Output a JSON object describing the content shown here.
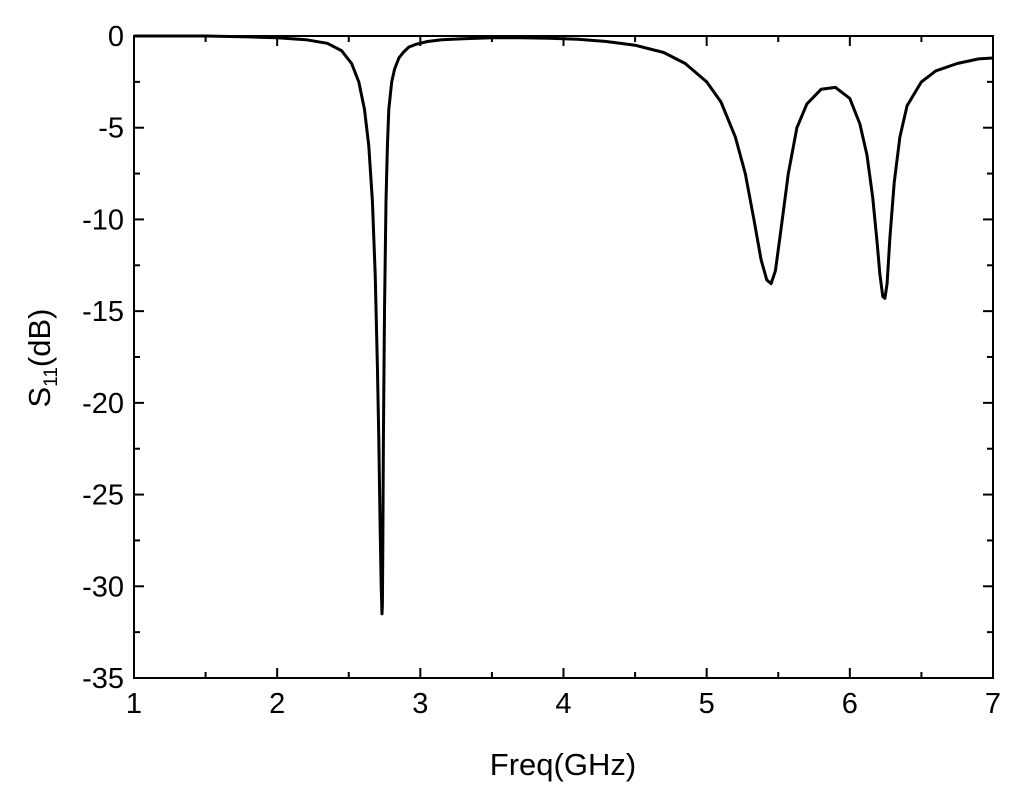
{
  "chart_data": {
    "type": "line",
    "xlabel": "Freq(GHz)",
    "ylabel": {
      "main": "S",
      "sub": "11",
      "unit": "(dB)"
    },
    "xlim": [
      1,
      7
    ],
    "ylim": [
      -35,
      0
    ],
    "xticks": [
      1,
      2,
      3,
      4,
      5,
      6,
      7
    ],
    "yticks": [
      0,
      -5,
      -10,
      -15,
      -20,
      -25,
      -30,
      -35
    ],
    "xtick_labels": [
      "1",
      "2",
      "3",
      "4",
      "5",
      "6",
      "7"
    ],
    "ytick_labels": [
      "0",
      "-5",
      "-10",
      "-15",
      "-20",
      "-25",
      "-30",
      "-35"
    ],
    "grid": false,
    "line_color": "#000000",
    "series": [
      {
        "x": [
          1.0,
          1.5,
          1.8,
          2.0,
          2.2,
          2.35,
          2.45,
          2.52,
          2.57,
          2.61,
          2.64,
          2.665,
          2.685,
          2.7,
          2.71,
          2.72,
          2.727,
          2.732,
          2.735,
          2.738,
          2.742,
          2.75,
          2.76,
          2.77,
          2.78,
          2.8,
          2.82,
          2.85,
          2.88,
          2.92,
          2.97,
          3.05,
          3.15,
          3.3,
          3.5,
          3.7,
          3.9,
          4.1,
          4.3,
          4.5,
          4.7,
          4.85,
          5.0,
          5.1,
          5.2,
          5.27,
          5.33,
          5.38,
          5.42,
          5.45,
          5.48,
          5.52,
          5.57,
          5.63,
          5.7,
          5.8,
          5.9,
          6.0,
          6.07,
          6.12,
          6.16,
          6.19,
          6.21,
          6.23,
          6.245,
          6.26,
          6.28,
          6.31,
          6.35,
          6.4,
          6.5,
          6.6,
          6.75,
          6.9,
          7.0
        ],
        "y": [
          0,
          0,
          -0.05,
          -0.1,
          -0.2,
          -0.4,
          -0.8,
          -1.5,
          -2.5,
          -4,
          -6,
          -9,
          -13,
          -18,
          -22,
          -27,
          -30,
          -31.5,
          -31,
          -28,
          -22,
          -15,
          -9,
          -6,
          -4,
          -2.5,
          -1.8,
          -1.2,
          -0.9,
          -0.6,
          -0.45,
          -0.3,
          -0.2,
          -0.15,
          -0.1,
          -0.1,
          -0.12,
          -0.18,
          -0.3,
          -0.5,
          -0.9,
          -1.5,
          -2.5,
          -3.6,
          -5.5,
          -7.5,
          -10,
          -12.2,
          -13.3,
          -13.5,
          -12.8,
          -10.5,
          -7.5,
          -5,
          -3.7,
          -2.9,
          -2.8,
          -3.4,
          -4.8,
          -6.5,
          -8.8,
          -11.2,
          -13,
          -14.2,
          -14.3,
          -13.5,
          -11,
          -8,
          -5.5,
          -3.8,
          -2.5,
          -1.9,
          -1.5,
          -1.25,
          -1.2
        ]
      }
    ]
  }
}
